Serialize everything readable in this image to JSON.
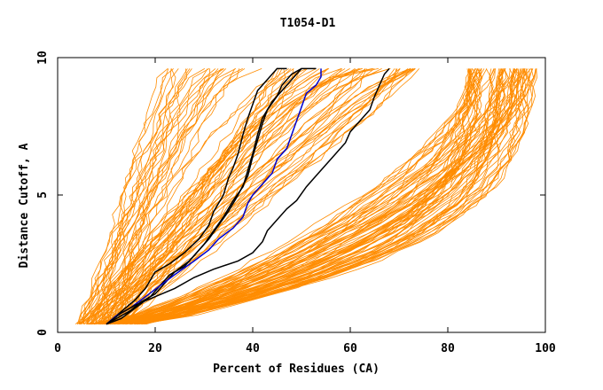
{
  "chart_data": {
    "type": "line",
    "title": "T1054-D1",
    "xlabel": "Percent of Residues (CA)",
    "ylabel": "Distance Cutoff, A",
    "xlim": [
      0,
      100
    ],
    "ylim": [
      0,
      10
    ],
    "x_ticks": [
      "0",
      "20",
      "40",
      "60",
      "80",
      "100"
    ],
    "y_ticks": [
      "0",
      "5",
      "10"
    ],
    "grid": false,
    "legend": "none",
    "colors": {
      "background_models": "#ff8c00",
      "highlight_black": "#000000",
      "highlight_blue": "#0000cc",
      "axes": "#000000"
    },
    "background_model_count": 160,
    "series": [
      {
        "color": "#000000",
        "points": [
          [
            10,
            0.3
          ],
          [
            12,
            0.6
          ],
          [
            14,
            0.9
          ],
          [
            16,
            1.2
          ],
          [
            18,
            1.6
          ],
          [
            19,
            1.9
          ],
          [
            20,
            2.2
          ],
          [
            23,
            2.5
          ],
          [
            26,
            2.9
          ],
          [
            29,
            3.4
          ],
          [
            31,
            3.9
          ],
          [
            32,
            4.4
          ],
          [
            34,
            5.0
          ],
          [
            35,
            5.6
          ],
          [
            36,
            6.0
          ],
          [
            37,
            6.5
          ],
          [
            38,
            7.2
          ],
          [
            39,
            7.8
          ],
          [
            40,
            8.3
          ],
          [
            41,
            8.8
          ],
          [
            43,
            9.2
          ],
          [
            45,
            9.6
          ],
          [
            47,
            9.6
          ]
        ]
      },
      {
        "color": "#000000",
        "points": [
          [
            10,
            0.3
          ],
          [
            12,
            0.5
          ],
          [
            15,
            0.8
          ],
          [
            17,
            1.1
          ],
          [
            20,
            1.4
          ],
          [
            22,
            1.8
          ],
          [
            24,
            2.2
          ],
          [
            27,
            2.6
          ],
          [
            29,
            3.0
          ],
          [
            31,
            3.4
          ],
          [
            33,
            3.9
          ],
          [
            35,
            4.4
          ],
          [
            37,
            5.0
          ],
          [
            39,
            5.7
          ],
          [
            40,
            6.4
          ],
          [
            41,
            7.0
          ],
          [
            42,
            7.6
          ],
          [
            43,
            8.1
          ],
          [
            45,
            8.6
          ],
          [
            46,
            9.0
          ],
          [
            48,
            9.4
          ],
          [
            50,
            9.6
          ]
        ]
      },
      {
        "color": "#000000",
        "points": [
          [
            10,
            0.3
          ],
          [
            13,
            0.5
          ],
          [
            16,
            0.9
          ],
          [
            19,
            1.3
          ],
          [
            21,
            1.7
          ],
          [
            23,
            2.1
          ],
          [
            26,
            2.4
          ],
          [
            28,
            2.8
          ],
          [
            30,
            3.2
          ],
          [
            32,
            3.7
          ],
          [
            34,
            4.2
          ],
          [
            36,
            4.8
          ],
          [
            38,
            5.3
          ],
          [
            39,
            5.9
          ],
          [
            40,
            6.5
          ],
          [
            41,
            7.2
          ],
          [
            42,
            7.8
          ],
          [
            44,
            8.4
          ],
          [
            46,
            8.8
          ],
          [
            48,
            9.2
          ],
          [
            50,
            9.6
          ],
          [
            53,
            9.6
          ]
        ]
      },
      {
        "color": "#0000cc",
        "points": [
          [
            10,
            0.3
          ],
          [
            12,
            0.6
          ],
          [
            15,
            0.9
          ],
          [
            18,
            1.3
          ],
          [
            21,
            1.7
          ],
          [
            24,
            2.1
          ],
          [
            28,
            2.6
          ],
          [
            31,
            3.0
          ],
          [
            33,
            3.4
          ],
          [
            36,
            3.8
          ],
          [
            38,
            4.2
          ],
          [
            39,
            4.7
          ],
          [
            40,
            5.0
          ],
          [
            42,
            5.4
          ],
          [
            44,
            5.8
          ],
          [
            45,
            6.3
          ],
          [
            47,
            6.7
          ],
          [
            48,
            7.2
          ],
          [
            49,
            7.7
          ],
          [
            50,
            8.2
          ],
          [
            51,
            8.7
          ],
          [
            53,
            9.0
          ],
          [
            54,
            9.3
          ],
          [
            54,
            9.6
          ]
        ]
      },
      {
        "color": "#000000",
        "points": [
          [
            10,
            0.3
          ],
          [
            13,
            0.7
          ],
          [
            16,
            1.0
          ],
          [
            20,
            1.3
          ],
          [
            24,
            1.6
          ],
          [
            28,
            2.0
          ],
          [
            32,
            2.3
          ],
          [
            37,
            2.6
          ],
          [
            40,
            2.9
          ],
          [
            42,
            3.3
          ],
          [
            43,
            3.7
          ],
          [
            45,
            4.1
          ],
          [
            47,
            4.5
          ],
          [
            49,
            4.8
          ],
          [
            51,
            5.3
          ],
          [
            53,
            5.7
          ],
          [
            55,
            6.1
          ],
          [
            57,
            6.5
          ],
          [
            59,
            6.9
          ],
          [
            60,
            7.3
          ],
          [
            62,
            7.7
          ],
          [
            64,
            8.1
          ],
          [
            65,
            8.6
          ],
          [
            66,
            9.0
          ],
          [
            67,
            9.4
          ],
          [
            68,
            9.6
          ]
        ]
      }
    ]
  }
}
